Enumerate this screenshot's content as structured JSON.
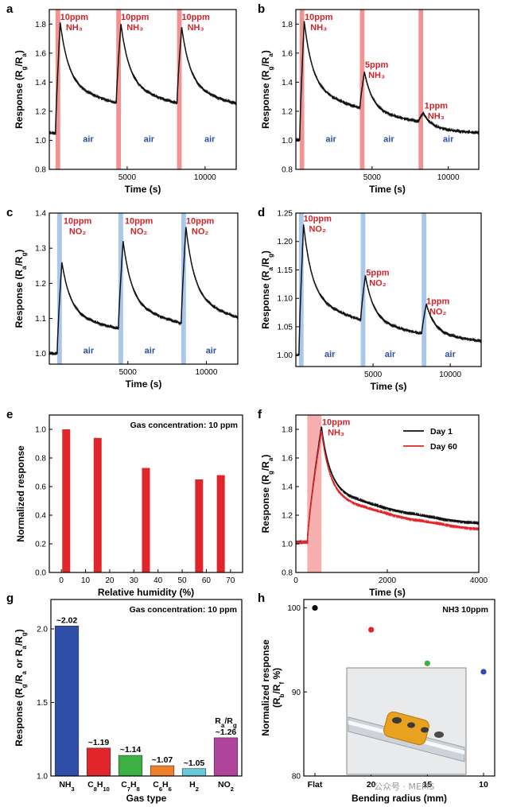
{
  "chart_data": [
    {
      "panel": "a",
      "type": "line",
      "xlabel": "Time (s)",
      "ylabel": "Response (Rg/Ra)",
      "xlim": [
        0,
        12000
      ],
      "ylim": [
        0.8,
        1.9
      ],
      "xticks": [
        "5000",
        "10000"
      ],
      "yticks": [
        "0.8",
        "1.0",
        "1.2",
        "1.4",
        "1.6",
        "1.8"
      ],
      "exposure_color": "#f08080",
      "exposures": [
        {
          "start": 400,
          "end": 700
        },
        {
          "start": 4300,
          "end": 4600
        },
        {
          "start": 8200,
          "end": 8500
        }
      ],
      "series": [
        {
          "color": "#111111",
          "baseline": 1.05,
          "pulses": [
            {
              "t0": 400,
              "t1": 700,
              "peak": 1.81
            },
            {
              "t0": 4300,
              "t1": 4600,
              "peak": 1.8
            },
            {
              "t0": 8200,
              "t1": 8500,
              "peak": 1.78
            }
          ]
        }
      ],
      "annotations": [
        {
          "lines": [
            "10ppm",
            "NH₃"
          ],
          "x": 1600,
          "y": 1.83,
          "color": "red"
        },
        {
          "lines": [
            "10ppm",
            "NH₃"
          ],
          "x": 5500,
          "y": 1.83,
          "color": "red"
        },
        {
          "lines": [
            "10ppm",
            "NH₃"
          ],
          "x": 9400,
          "y": 1.83,
          "color": "red"
        },
        {
          "lines": [
            "air"
          ],
          "x": 2500,
          "y": 0.99,
          "color": "blue"
        },
        {
          "lines": [
            "air"
          ],
          "x": 6400,
          "y": 0.99,
          "color": "blue"
        },
        {
          "lines": [
            "air"
          ],
          "x": 10300,
          "y": 0.99,
          "color": "blue"
        }
      ]
    },
    {
      "panel": "b",
      "type": "line",
      "xlabel": "Time (s)",
      "ylabel": "Response (Rg/Ra)",
      "xlim": [
        0,
        12000
      ],
      "ylim": [
        0.8,
        1.9
      ],
      "xticks": [
        "5000",
        "10000"
      ],
      "yticks": [
        "0.8",
        "1.0",
        "1.2",
        "1.4",
        "1.6",
        "1.8"
      ],
      "exposure_color": "#f08080",
      "exposures": [
        {
          "start": 250,
          "end": 550
        },
        {
          "start": 4200,
          "end": 4500
        },
        {
          "start": 8050,
          "end": 8350
        }
      ],
      "series": [
        {
          "color": "#111111",
          "baseline": 1.0,
          "pulses": [
            {
              "t0": 250,
              "t1": 550,
              "peak": 1.82
            },
            {
              "t0": 4200,
              "t1": 4500,
              "peak": 1.47
            },
            {
              "t0": 8050,
              "t1": 8350,
              "peak": 1.19
            }
          ]
        }
      ],
      "annotations": [
        {
          "lines": [
            "10ppm",
            "NH₃"
          ],
          "x": 1500,
          "y": 1.83,
          "color": "red"
        },
        {
          "lines": [
            "5ppm",
            "NH₃"
          ],
          "x": 5300,
          "y": 1.5,
          "color": "red"
        },
        {
          "lines": [
            "1ppm",
            "NH₃"
          ],
          "x": 9200,
          "y": 1.22,
          "color": "red"
        },
        {
          "lines": [
            "air"
          ],
          "x": 2300,
          "y": 0.99,
          "color": "blue"
        },
        {
          "lines": [
            "air"
          ],
          "x": 6100,
          "y": 0.99,
          "color": "blue"
        },
        {
          "lines": [
            "air"
          ],
          "x": 10000,
          "y": 0.99,
          "color": "blue"
        }
      ]
    },
    {
      "panel": "c",
      "type": "line",
      "xlabel": "Time (s)",
      "ylabel": "Response (Ra/Rg)",
      "xlim": [
        0,
        12000
      ],
      "ylim": [
        0.97,
        1.4
      ],
      "xticks": [
        "5000",
        "10000"
      ],
      "yticks": [
        "1.0",
        "1.1",
        "1.2",
        "1.3",
        "1.4"
      ],
      "exposure_color": "#9bbde8",
      "exposures": [
        {
          "start": 500,
          "end": 800
        },
        {
          "start": 4400,
          "end": 4700
        },
        {
          "start": 8400,
          "end": 8700
        }
      ],
      "series": [
        {
          "color": "#111111",
          "baseline": 1.0,
          "pulses": [
            {
              "t0": 500,
              "t1": 800,
              "peak": 1.26
            },
            {
              "t0": 4400,
              "t1": 4700,
              "peak": 1.32
            },
            {
              "t0": 8400,
              "t1": 8700,
              "peak": 1.36
            }
          ]
        }
      ],
      "annotations": [
        {
          "lines": [
            "10ppm",
            "NO₂"
          ],
          "x": 1800,
          "y": 1.37,
          "color": "red"
        },
        {
          "lines": [
            "10ppm",
            "NO₂"
          ],
          "x": 5700,
          "y": 1.37,
          "color": "red"
        },
        {
          "lines": [
            "10ppm",
            "NO₂"
          ],
          "x": 9600,
          "y": 1.37,
          "color": "red"
        },
        {
          "lines": [
            "air"
          ],
          "x": 2500,
          "y": 1.0,
          "color": "blue"
        },
        {
          "lines": [
            "air"
          ],
          "x": 6400,
          "y": 1.0,
          "color": "blue"
        },
        {
          "lines": [
            "air"
          ],
          "x": 10300,
          "y": 1.0,
          "color": "blue"
        }
      ]
    },
    {
      "panel": "d",
      "type": "line",
      "xlabel": "Time (s)",
      "ylabel": "Response (Ra/Rg)",
      "xlim": [
        0,
        12000
      ],
      "ylim": [
        0.98,
        1.25
      ],
      "xticks": [
        "5000",
        "10000"
      ],
      "yticks": [
        "1.00",
        "1.05",
        "1.10",
        "1.15",
        "1.20",
        "1.25"
      ],
      "exposure_color": "#9bbde8",
      "exposures": [
        {
          "start": 200,
          "end": 500
        },
        {
          "start": 4200,
          "end": 4500
        },
        {
          "start": 8150,
          "end": 8450
        }
      ],
      "series": [
        {
          "color": "#111111",
          "baseline": 1.0,
          "pulses": [
            {
              "t0": 200,
              "t1": 500,
              "peak": 1.23
            },
            {
              "t0": 4200,
              "t1": 4500,
              "peak": 1.14
            },
            {
              "t0": 8150,
              "t1": 8450,
              "peak": 1.09
            }
          ]
        }
      ],
      "annotations": [
        {
          "lines": [
            "10ppm",
            "NO₂"
          ],
          "x": 1400,
          "y": 1.235,
          "color": "red"
        },
        {
          "lines": [
            "5ppm",
            "NO₂"
          ],
          "x": 5300,
          "y": 1.14,
          "color": "red"
        },
        {
          "lines": [
            "1ppm",
            "NO₂"
          ],
          "x": 9200,
          "y": 1.09,
          "color": "red"
        },
        {
          "lines": [
            "air"
          ],
          "x": 2200,
          "y": 0.997,
          "color": "blue"
        },
        {
          "lines": [
            "air"
          ],
          "x": 6100,
          "y": 0.997,
          "color": "blue"
        },
        {
          "lines": [
            "air"
          ],
          "x": 10000,
          "y": 0.997,
          "color": "blue"
        }
      ]
    },
    {
      "panel": "e",
      "type": "bar",
      "title": "Gas concentration: 10 ppm",
      "xlabel": "Relative humidity (%)",
      "ylabel": "Normalized response",
      "xlim": [
        -5,
        75
      ],
      "ylim": [
        0,
        1.1
      ],
      "xticks": [
        "0",
        "10",
        "20",
        "30",
        "40",
        "50",
        "60",
        "70"
      ],
      "yticks": [
        "0.0",
        "0.2",
        "0.4",
        "0.6",
        "0.8",
        "1.0"
      ],
      "bar_color": "#e0262a",
      "x": [
        2,
        15,
        35,
        57,
        66
      ],
      "values": [
        1.0,
        0.94,
        0.73,
        0.65,
        0.68
      ]
    },
    {
      "panel": "f",
      "type": "line",
      "xlabel": "Time (s)",
      "ylabel": "Response (Rg/Ra)",
      "xlim": [
        0,
        4000
      ],
      "ylim": [
        0.8,
        1.9
      ],
      "xticks": [
        "0",
        "2000",
        "4000"
      ],
      "yticks": [
        "0.8",
        "1.0",
        "1.2",
        "1.4",
        "1.6",
        "1.8"
      ],
      "exposure_color": "#f4a0a0",
      "exposures": [
        {
          "start": 250,
          "end": 560
        }
      ],
      "series": [
        {
          "name": "Day 1",
          "color": "#111111",
          "baseline": 1.01,
          "pulses": [
            {
              "t0": 250,
              "t1": 560,
              "peak": 1.82,
              "end": 1.06
            }
          ]
        },
        {
          "name": "Day 60",
          "color": "#e0262a",
          "baseline": 1.01,
          "pulses": [
            {
              "t0": 250,
              "t1": 560,
              "peak": 1.79,
              "end": 1.02
            }
          ]
        }
      ],
      "legend": "top-right",
      "annotations": [
        {
          "lines": [
            "10ppm",
            "NH₃"
          ],
          "x": 880,
          "y": 1.83,
          "color": "red"
        }
      ]
    },
    {
      "panel": "g",
      "type": "bar",
      "title": "Gas concentration: 10 ppm",
      "xlabel": "Gas type",
      "ylabel": "Response (Rg/Ra or Ra/Rg)",
      "ylim": [
        1.0,
        2.2
      ],
      "yticks": [
        "1.0",
        "1.5",
        "2.0"
      ],
      "categories": [
        "NH₃",
        "C₈H₁₀",
        "C₇H₈",
        "C₆H₆",
        "H₂",
        "NO₂"
      ],
      "values": [
        2.02,
        1.19,
        1.14,
        1.07,
        1.05,
        1.26
      ],
      "value_labels": [
        "~2.02",
        "~1.19",
        "~1.14",
        "~1.07",
        "~1.05",
        "~1.26"
      ],
      "colors": [
        "#2f4ea8",
        "#e0262a",
        "#3db043",
        "#f07f2a",
        "#67c9da",
        "#b0449c"
      ],
      "extra_label": "Ra/Rg"
    },
    {
      "panel": "h",
      "type": "scatter",
      "title": "NH3 10ppm",
      "xlabel": "Bending radius (mm)",
      "ylabel": "Normalized response(Rb/Rf %)",
      "ylim": [
        80,
        101
      ],
      "yticks": [
        "80",
        "90",
        "100"
      ],
      "categories": [
        "Flat",
        "20",
        "15",
        "10"
      ],
      "values": [
        100.0,
        97.4,
        93.4,
        92.4
      ],
      "colors": [
        "#111111",
        "#e0262a",
        "#3db043",
        "#2f4ea8"
      ]
    }
  ],
  "watermark": "公众号 · MEMS"
}
